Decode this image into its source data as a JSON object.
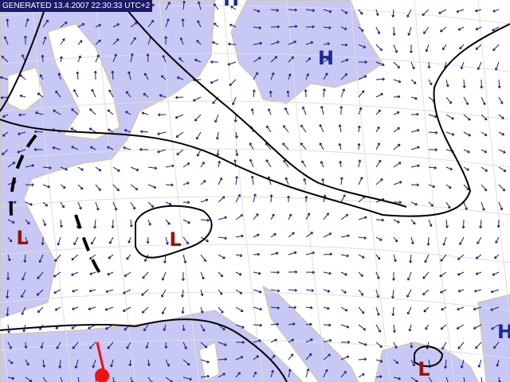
{
  "header": {
    "generated": "GENERATED 13.4.2007 22:30:33 UTC+2"
  },
  "pressure_centers": [
    {
      "label": "H"
    },
    {
      "label": "H"
    },
    {
      "label": "H"
    },
    {
      "label": "L"
    },
    {
      "label": "L"
    },
    {
      "label": "L"
    }
  ]
}
